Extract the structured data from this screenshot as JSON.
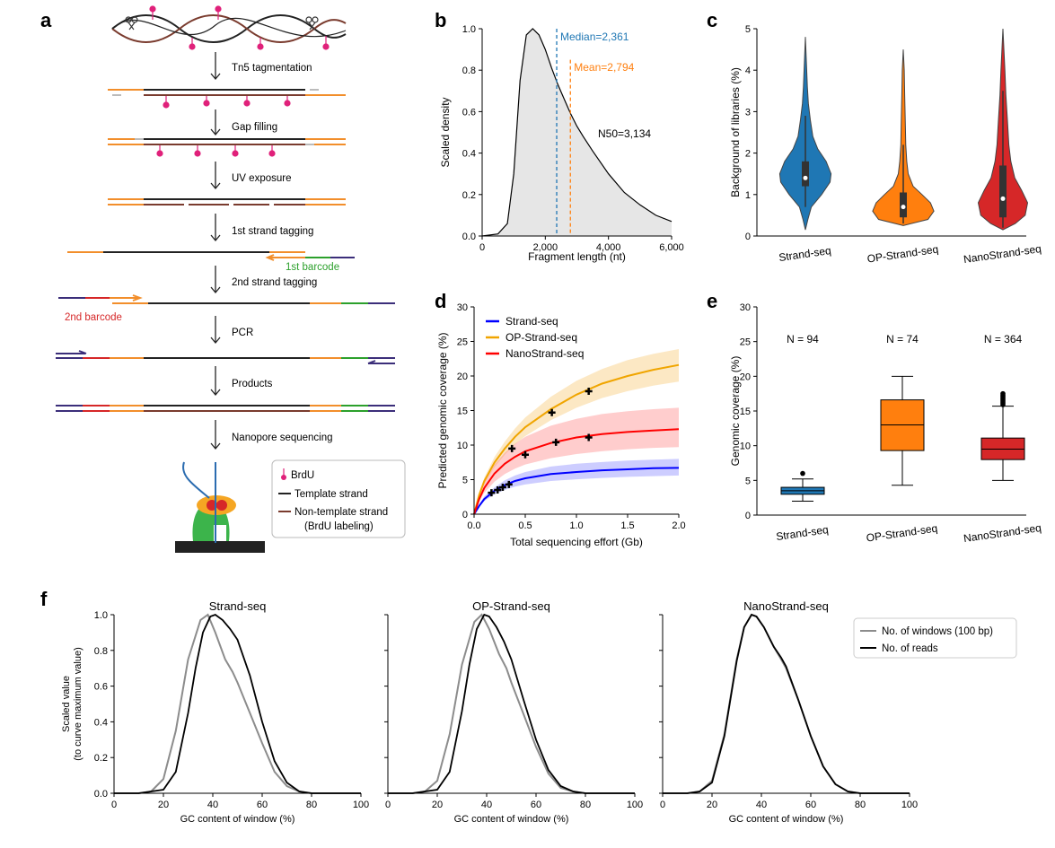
{
  "panel_labels": [
    "a",
    "b",
    "c",
    "d",
    "e",
    "f"
  ],
  "workflow": {
    "steps": [
      "Tn5 tagmentation",
      "Gap filling",
      "UV exposure",
      "1st strand tagging",
      "2nd strand tagging",
      "PCR",
      "Products",
      "Nanopore sequencing"
    ],
    "barcode1": "1st barcode",
    "barcode2": "2nd barcode",
    "legend": {
      "brdu": "BrdU",
      "template": "Template strand",
      "nontemplate_1": "Non-template strand",
      "nontemplate_2": "(BrdU labeling)"
    },
    "colors": {
      "template": "#222222",
      "nontemplate": "#7a3b2e",
      "adapter": "#f28e2b",
      "barcode1": "#2ca02c",
      "barcode2": "#d62728",
      "primer": "#3b2e7a",
      "brdu": "#e0217a",
      "pore_protein": "#3cb44b",
      "motor": "#f5a623",
      "dna": "#2b6cb0"
    }
  },
  "chart_data": [
    {
      "panel": "b",
      "type": "area",
      "xlabel": "Fragment length (nt)",
      "ylabel": "Scaled density",
      "xlim": [
        0,
        6000
      ],
      "ylim": [
        0,
        1.0
      ],
      "xticks": [
        "0",
        "2,000",
        "4,000",
        "6,000"
      ],
      "yticks": [
        "0.0",
        "0.2",
        "0.4",
        "0.6",
        "0.8",
        "1.0"
      ],
      "x": [
        0,
        500,
        800,
        1000,
        1200,
        1400,
        1600,
        1800,
        2000,
        2200,
        2400,
        2600,
        2800,
        3000,
        3200,
        3500,
        4000,
        4500,
        5000,
        5500,
        6000
      ],
      "y": [
        0,
        0.01,
        0.06,
        0.3,
        0.75,
        0.97,
        1.0,
        0.97,
        0.9,
        0.81,
        0.73,
        0.66,
        0.59,
        0.53,
        0.48,
        0.41,
        0.3,
        0.21,
        0.15,
        0.1,
        0.07
      ],
      "median": {
        "label": "Median=2,361",
        "value": 2361,
        "color": "#1f77b4"
      },
      "mean": {
        "label": "Mean=2,794",
        "value": 2794,
        "color": "#ff7f0e"
      },
      "n50_label": "N50=3,134",
      "fill": "#e6e6e6"
    },
    {
      "panel": "c",
      "type": "violin",
      "ylabel": "Background of libraries (%)",
      "ylim": [
        0,
        5
      ],
      "yticks": [
        "0",
        "1",
        "2",
        "3",
        "4",
        "5"
      ],
      "categories": [
        "Strand-seq",
        "OP-Strand-seq",
        "NanoStrand-seq"
      ],
      "colors": [
        "#1f77b4",
        "#ff7f0e",
        "#d62728"
      ],
      "medians": [
        1.4,
        0.7,
        0.9
      ],
      "q1": [
        1.2,
        0.45,
        0.45
      ],
      "q3": [
        1.8,
        1.05,
        1.7
      ],
      "whisker_low": [
        0.7,
        0.3,
        0.2
      ],
      "whisker_high": [
        2.9,
        2.2,
        3.5
      ],
      "ranges": [
        [
          0.15,
          4.8
        ],
        [
          0.25,
          4.5
        ],
        [
          0.15,
          5.0
        ]
      ],
      "profiles": [
        [
          [
            0.15,
            0
          ],
          [
            0.4,
            0.05
          ],
          [
            0.7,
            0.12
          ],
          [
            1.0,
            0.33
          ],
          [
            1.3,
            0.5
          ],
          [
            1.5,
            0.52
          ],
          [
            1.8,
            0.42
          ],
          [
            2.1,
            0.25
          ],
          [
            2.4,
            0.15
          ],
          [
            2.8,
            0.1
          ],
          [
            3.2,
            0.06
          ],
          [
            3.6,
            0.04
          ],
          [
            4.2,
            0.02
          ],
          [
            4.8,
            0
          ]
        ],
        [
          [
            0.25,
            0
          ],
          [
            0.4,
            0.5
          ],
          [
            0.6,
            0.62
          ],
          [
            0.8,
            0.55
          ],
          [
            1.0,
            0.38
          ],
          [
            1.2,
            0.2
          ],
          [
            1.5,
            0.1
          ],
          [
            1.8,
            0.07
          ],
          [
            2.2,
            0.05
          ],
          [
            2.8,
            0.04
          ],
          [
            3.4,
            0.03
          ],
          [
            4.0,
            0.02
          ],
          [
            4.5,
            0
          ]
        ],
        [
          [
            0.15,
            0
          ],
          [
            0.3,
            0.25
          ],
          [
            0.5,
            0.45
          ],
          [
            0.8,
            0.5
          ],
          [
            1.1,
            0.38
          ],
          [
            1.4,
            0.24
          ],
          [
            1.8,
            0.16
          ],
          [
            2.2,
            0.12
          ],
          [
            2.8,
            0.09
          ],
          [
            3.4,
            0.06
          ],
          [
            4.0,
            0.04
          ],
          [
            4.5,
            0.02
          ],
          [
            5.0,
            0
          ]
        ]
      ]
    },
    {
      "panel": "d",
      "type": "line",
      "xlabel": "Total sequencing effort (Gb)",
      "ylabel": "Predicted genomic coverage (%)",
      "xlim": [
        0,
        2.0
      ],
      "ylim": [
        0,
        30
      ],
      "xticks": [
        "0.0",
        "0.5",
        "1.0",
        "1.5",
        "2.0"
      ],
      "yticks": [
        "0",
        "5",
        "10",
        "15",
        "20",
        "25",
        "30"
      ],
      "series": [
        {
          "name": "Strand-seq",
          "color": "#0000ff",
          "x": [
            0,
            0.05,
            0.1,
            0.2,
            0.3,
            0.4,
            0.5,
            0.75,
            1.0,
            1.25,
            1.5,
            1.75,
            2.0
          ],
          "y": [
            0,
            1.2,
            2.2,
            3.4,
            4.2,
            4.8,
            5.2,
            5.8,
            6.1,
            6.35,
            6.5,
            6.65,
            6.7
          ],
          "band_low": [
            0,
            1.0,
            1.9,
            2.9,
            3.5,
            4.0,
            4.3,
            4.8,
            5.05,
            5.25,
            5.4,
            5.5,
            5.6
          ],
          "band_high": [
            0,
            1.4,
            2.6,
            3.9,
            4.9,
            5.6,
            6.1,
            6.9,
            7.3,
            7.55,
            7.75,
            7.9,
            8.0
          ],
          "points": [
            [
              0.17,
              3.1
            ],
            [
              0.23,
              3.5
            ],
            [
              0.28,
              3.9
            ],
            [
              0.34,
              4.3
            ]
          ]
        },
        {
          "name": "OP-Strand-seq",
          "color": "#f0a500",
          "x": [
            0,
            0.05,
            0.1,
            0.2,
            0.3,
            0.4,
            0.5,
            0.75,
            1.0,
            1.25,
            1.5,
            1.75,
            2.0
          ],
          "y": [
            0,
            2.8,
            4.8,
            7.5,
            9.5,
            11.2,
            12.6,
            15.2,
            17.3,
            18.9,
            20.0,
            20.9,
            21.6
          ],
          "band_low": [
            0,
            2.5,
            4.4,
            6.8,
            8.6,
            10.1,
            11.3,
            13.6,
            15.4,
            16.8,
            17.8,
            18.6,
            19.2
          ],
          "band_high": [
            0,
            3.1,
            5.3,
            8.3,
            10.5,
            12.4,
            14.0,
            17.0,
            19.3,
            21.0,
            22.3,
            23.2,
            23.9
          ],
          "points": [
            [
              0.37,
              9.5
            ],
            [
              0.76,
              14.7
            ],
            [
              1.12,
              17.8
            ]
          ]
        },
        {
          "name": "NanoStrand-seq",
          "color": "#ff0000",
          "x": [
            0,
            0.05,
            0.1,
            0.2,
            0.3,
            0.4,
            0.5,
            0.75,
            1.0,
            1.25,
            1.5,
            1.75,
            2.0
          ],
          "y": [
            0,
            2.2,
            3.8,
            5.9,
            7.3,
            8.3,
            9.1,
            10.3,
            11.1,
            11.6,
            11.9,
            12.1,
            12.3
          ],
          "band_low": [
            0,
            1.8,
            3.1,
            4.7,
            5.8,
            6.6,
            7.2,
            8.1,
            8.7,
            9.1,
            9.4,
            9.6,
            9.7
          ],
          "band_high": [
            0,
            2.7,
            4.6,
            7.2,
            8.9,
            10.2,
            11.2,
            12.8,
            13.8,
            14.5,
            14.9,
            15.2,
            15.4
          ],
          "points": [
            [
              0.5,
              8.6
            ],
            [
              0.8,
              10.4
            ],
            [
              1.12,
              11.1
            ]
          ]
        }
      ],
      "legend": "top-left"
    },
    {
      "panel": "e",
      "type": "box",
      "ylabel": "Genomic coverage (%)",
      "ylim": [
        0,
        30
      ],
      "yticks": [
        "0",
        "5",
        "10",
        "15",
        "20",
        "25",
        "30"
      ],
      "categories": [
        "Strand-seq",
        "OP-Strand-seq",
        "NanoStrand-seq"
      ],
      "n_labels": [
        "N = 94",
        "N = 74",
        "N = 364"
      ],
      "colors": [
        "#1f77b4",
        "#ff7f0e",
        "#d62728"
      ],
      "q1": [
        3.0,
        9.3,
        8.0
      ],
      "median": [
        3.5,
        13.0,
        9.5
      ],
      "q3": [
        4.0,
        16.6,
        11.1
      ],
      "whisker_low": [
        2.0,
        4.3,
        5.0
      ],
      "whisker_high": [
        5.2,
        20.0,
        15.7
      ],
      "outliers": [
        [
          6.0
        ],
        [],
        [
          15.9,
          16.1,
          16.3,
          16.5,
          16.7,
          16.9,
          17.1,
          17.3,
          17.5
        ]
      ]
    },
    {
      "panel": "f",
      "type": "line",
      "ylabel_1": "Scaled value",
      "ylabel_2": "(to curve maximum value)",
      "xlabel": "GC content of window (%)",
      "xlim": [
        0,
        100
      ],
      "ylim": [
        0,
        1.0
      ],
      "xticks": [
        "0",
        "20",
        "40",
        "60",
        "80",
        "100"
      ],
      "yticks": [
        "0.0",
        "0.2",
        "0.4",
        "0.6",
        "0.8",
        "1.0"
      ],
      "legend": "top-right",
      "legend_entries": [
        "No. of windows (100 bp)",
        "No. of reads"
      ],
      "subplots": [
        {
          "title": "Strand-seq",
          "windows": {
            "x": [
              0,
              10,
              15,
              20,
              25,
              30,
              35,
              38,
              41,
              45,
              48,
              50,
              55,
              60,
              65,
              70,
              75,
              80,
              90,
              100
            ],
            "y": [
              0,
              0,
              0.01,
              0.08,
              0.35,
              0.75,
              0.97,
              1.0,
              0.9,
              0.75,
              0.68,
              0.62,
              0.45,
              0.28,
              0.12,
              0.04,
              0.01,
              0,
              0,
              0
            ]
          },
          "reads": {
            "x": [
              0,
              10,
              20,
              25,
              30,
              33,
              36,
              39,
              41,
              44,
              47,
              50,
              55,
              60,
              65,
              70,
              75,
              80,
              90,
              100
            ],
            "y": [
              0,
              0,
              0.02,
              0.12,
              0.45,
              0.7,
              0.9,
              0.99,
              1.0,
              0.97,
              0.92,
              0.86,
              0.66,
              0.4,
              0.18,
              0.06,
              0.01,
              0,
              0,
              0
            ]
          }
        },
        {
          "title": "OP-Strand-seq",
          "windows": {
            "x": [
              0,
              10,
              15,
              20,
              25,
              30,
              35,
              38,
              41,
              45,
              48,
              50,
              55,
              60,
              65,
              70,
              75,
              80,
              90,
              100
            ],
            "y": [
              0,
              0,
              0.01,
              0.07,
              0.33,
              0.72,
              0.96,
              1.0,
              0.92,
              0.78,
              0.7,
              0.62,
              0.44,
              0.26,
              0.11,
              0.03,
              0.01,
              0,
              0,
              0
            ]
          },
          "reads": {
            "x": [
              0,
              10,
              20,
              25,
              30,
              33,
              36,
              39,
              41,
              44,
              47,
              50,
              55,
              60,
              65,
              70,
              75,
              80,
              90,
              100
            ],
            "y": [
              0,
              0,
              0.02,
              0.12,
              0.46,
              0.72,
              0.92,
              1.0,
              0.99,
              0.93,
              0.85,
              0.75,
              0.52,
              0.3,
              0.13,
              0.04,
              0.01,
              0,
              0,
              0
            ]
          }
        },
        {
          "title": "NanoStrand-seq",
          "windows": {
            "x": [
              0,
              10,
              15,
              20,
              25,
              30,
              33,
              36,
              38,
              41,
              45,
              48,
              50,
              55,
              60,
              65,
              70,
              75,
              80,
              90,
              100
            ],
            "y": [
              0,
              0,
              0.01,
              0.07,
              0.33,
              0.75,
              0.93,
              1.0,
              0.99,
              0.93,
              0.82,
              0.75,
              0.7,
              0.52,
              0.32,
              0.15,
              0.05,
              0.01,
              0,
              0,
              0
            ]
          },
          "reads": {
            "x": [
              0,
              10,
              15,
              20,
              25,
              30,
              33,
              36,
              38,
              41,
              45,
              48,
              50,
              55,
              60,
              65,
              70,
              75,
              80,
              90,
              100
            ],
            "y": [
              0,
              0,
              0.01,
              0.06,
              0.32,
              0.74,
              0.93,
              1.0,
              0.99,
              0.93,
              0.82,
              0.76,
              0.71,
              0.52,
              0.32,
              0.15,
              0.05,
              0.01,
              0,
              0,
              0
            ]
          }
        }
      ]
    }
  ]
}
